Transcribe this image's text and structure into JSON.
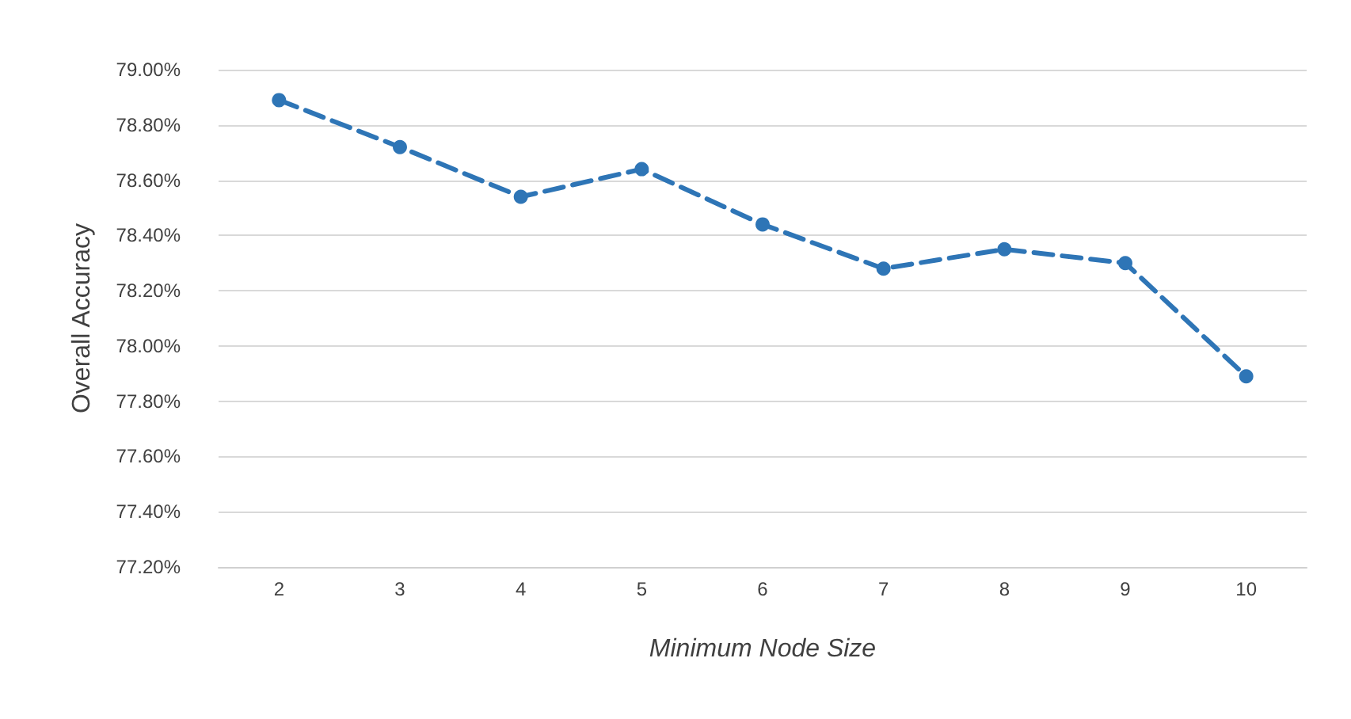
{
  "chart_data": {
    "type": "line",
    "xlabel": "Minimum Node Size",
    "ylabel": "Overall Accuracy",
    "categories": [
      "2",
      "3",
      "4",
      "5",
      "6",
      "7",
      "8",
      "9",
      "10"
    ],
    "series": [
      {
        "color": "#2e75b6",
        "values": [
          78.89,
          78.72,
          78.54,
          78.64,
          78.44,
          78.28,
          78.35,
          78.3,
          77.89
        ]
      }
    ],
    "ylim": [
      77.2,
      79.0
    ],
    "yticks": [
      {
        "value": 77.2,
        "label": "77.20%"
      },
      {
        "value": 77.4,
        "label": "77.40%"
      },
      {
        "value": 77.6,
        "label": "77.60%"
      },
      {
        "value": 77.8,
        "label": "77.80%"
      },
      {
        "value": 78.0,
        "label": "78.00%"
      },
      {
        "value": 78.2,
        "label": "78.20%"
      },
      {
        "value": 78.4,
        "label": "78.40%"
      },
      {
        "value": 78.6,
        "label": "78.60%"
      },
      {
        "value": 78.8,
        "label": "78.80%"
      },
      {
        "value": 79.0,
        "label": "79.00%"
      }
    ],
    "grid": "y",
    "marker": "circle",
    "line_style": "dashed"
  }
}
